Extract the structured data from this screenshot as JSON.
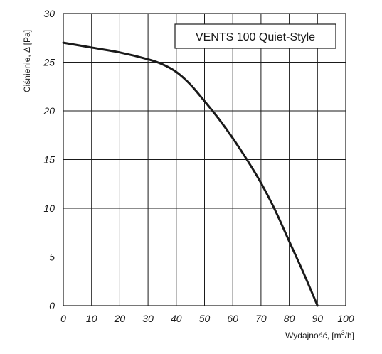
{
  "chart_data": {
    "type": "line",
    "title": "VENTS 100 Quiet-Style",
    "xlabel_main": "Wydajność, [m",
    "xlabel_sup": "3",
    "xlabel_end": "/h]",
    "ylabel": "Ciśnienie, Δ [Pa]",
    "xlim": [
      0,
      100
    ],
    "ylim": [
      0,
      30
    ],
    "x_ticks": [
      0,
      10,
      20,
      30,
      40,
      50,
      60,
      70,
      80,
      90,
      100
    ],
    "y_ticks": [
      0,
      5,
      10,
      15,
      20,
      25,
      30
    ],
    "grid": true,
    "series": [
      {
        "x": [
          0,
          10,
          20,
          30,
          35,
          40,
          45,
          50,
          55,
          60,
          65,
          70,
          75,
          80,
          85,
          90
        ],
        "y": [
          27,
          26.5,
          26,
          25.3,
          24.8,
          24,
          22.7,
          21,
          19.2,
          17.2,
          15,
          12.6,
          9.8,
          6.6,
          3.4,
          0
        ]
      }
    ],
    "line_color": "#1a1a1a"
  }
}
